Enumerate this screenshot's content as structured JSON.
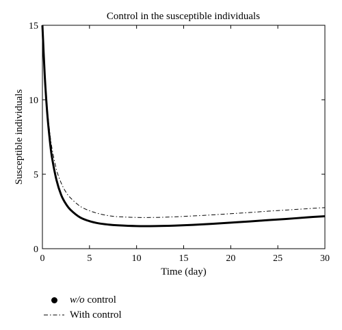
{
  "chart_data": {
    "type": "line",
    "title": "Control in the susceptible individuals",
    "xlabel": "Time (day)",
    "ylabel": "Susceptible individuals",
    "xlim": [
      0,
      30
    ],
    "ylim": [
      0,
      15
    ],
    "xticks": [
      "0",
      "5",
      "10",
      "15",
      "20",
      "25",
      "30"
    ],
    "yticks": [
      "0",
      "5",
      "10",
      "15"
    ],
    "grid": false,
    "legend_position": "bottom-left, below plot",
    "series": [
      {
        "name": "w/o control",
        "style": "solid-thick",
        "x": [
          0,
          0.25,
          0.5,
          0.75,
          1,
          1.5,
          2,
          2.5,
          3,
          4,
          5,
          6,
          7,
          8,
          10,
          12,
          14,
          16,
          18,
          20,
          22,
          24,
          26,
          28,
          30
        ],
        "y": [
          15,
          11.6,
          9.2,
          7.5,
          6.2,
          4.6,
          3.6,
          3.0,
          2.6,
          2.1,
          1.85,
          1.7,
          1.62,
          1.57,
          1.52,
          1.52,
          1.55,
          1.6,
          1.67,
          1.75,
          1.83,
          1.92,
          2.0,
          2.1,
          2.18
        ]
      },
      {
        "name": "With control",
        "style": "dash-dot-thin",
        "x": [
          0,
          0.25,
          0.5,
          0.75,
          1,
          1.5,
          2,
          2.5,
          3,
          4,
          5,
          6,
          7,
          8,
          10,
          12,
          14,
          16,
          18,
          20,
          22,
          24,
          26,
          28,
          30
        ],
        "y": [
          15,
          11.8,
          9.6,
          8.0,
          6.8,
          5.3,
          4.4,
          3.8,
          3.4,
          2.85,
          2.55,
          2.35,
          2.22,
          2.15,
          2.1,
          2.1,
          2.14,
          2.2,
          2.27,
          2.35,
          2.43,
          2.52,
          2.6,
          2.68,
          2.76
        ]
      }
    ]
  },
  "legend": {
    "items": [
      {
        "italic": "w/o",
        "suffix": " control"
      },
      {
        "label": "With control"
      }
    ]
  },
  "colors": {
    "line": "#000000",
    "axes": "#000000"
  }
}
